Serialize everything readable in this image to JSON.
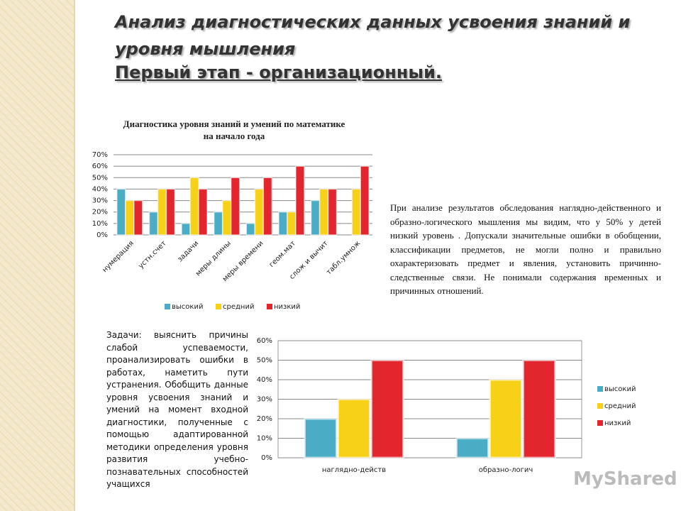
{
  "title": "Анализ диагностических данных усвоения знаний и уровня мышления",
  "subtitle": "Первый этап  -  организационный.",
  "analysis_text": "При анализе результатов обследования наглядно-действенного и образно-логического мышления мы видим, что у 50% у детей низкий уровень . Допускали значительные ошибки в обобщении, классификации предметов, не могли полно и правильно охарактеризовать предмет и явления, установить причинно-следственные связи. Не понимали содержания временных и причинных отношений.",
  "tasks_text": "Задачи: выяснить причины слабой успеваемости, проанализировать ошибки в работах, наметить пути устранения. Обобщить данные уровня усвоения знаний и умений на момент входной диагностики, полученные с помощью адаптированной методики определения уровня развития учебно-познавательных способностей учащихся",
  "watermark": "MyShared",
  "chart_data": [
    {
      "type": "bar",
      "title": "Диагностика уровня знаний и умений по математике на начало года",
      "categories": [
        "нумерация",
        "устн.счет",
        "задачи",
        "меры длины",
        "меры времени",
        "геом.мат",
        "слож и вычит",
        "табл.умнож"
      ],
      "series": [
        {
          "name": "высокий",
          "color": "#4bacc6",
          "values": [
            40,
            20,
            10,
            20,
            10,
            20,
            30,
            0
          ]
        },
        {
          "name": "средний",
          "color": "#f7d117",
          "values": [
            30,
            40,
            50,
            30,
            40,
            20,
            40,
            40
          ]
        },
        {
          "name": "низкий",
          "color": "#e3262d",
          "values": [
            30,
            40,
            40,
            50,
            50,
            60,
            40,
            60
          ]
        }
      ],
      "ylim": [
        0,
        70
      ],
      "yticks": [
        {
          "value": 0,
          "label": "0%"
        },
        {
          "value": 10,
          "label": "10%"
        },
        {
          "value": 20,
          "label": "20%"
        },
        {
          "value": 30,
          "label": "30%"
        },
        {
          "value": 40,
          "label": "40%"
        },
        {
          "value": 50,
          "label": "50%"
        },
        {
          "value": 60,
          "label": "60%"
        },
        {
          "value": 70,
          "label": "70%"
        }
      ],
      "grid": true,
      "legend": "bottom"
    },
    {
      "type": "bar",
      "categories": [
        "наглядно-действ",
        "образно-логич"
      ],
      "series": [
        {
          "name": "высокий",
          "color": "#4bacc6",
          "values": [
            20,
            10
          ]
        },
        {
          "name": "средний",
          "color": "#f7d117",
          "values": [
            30,
            40
          ]
        },
        {
          "name": "низкий",
          "color": "#e3262d",
          "values": [
            50,
            50
          ]
        }
      ],
      "ylim": [
        0,
        60
      ],
      "yticks": [
        {
          "value": 0,
          "label": "0%"
        },
        {
          "value": 10,
          "label": "10%"
        },
        {
          "value": 20,
          "label": "20%"
        },
        {
          "value": 30,
          "label": "30%"
        },
        {
          "value": 40,
          "label": "40%"
        },
        {
          "value": 50,
          "label": "50%"
        },
        {
          "value": 60,
          "label": "60%"
        }
      ],
      "grid": true,
      "legend": "right"
    }
  ]
}
